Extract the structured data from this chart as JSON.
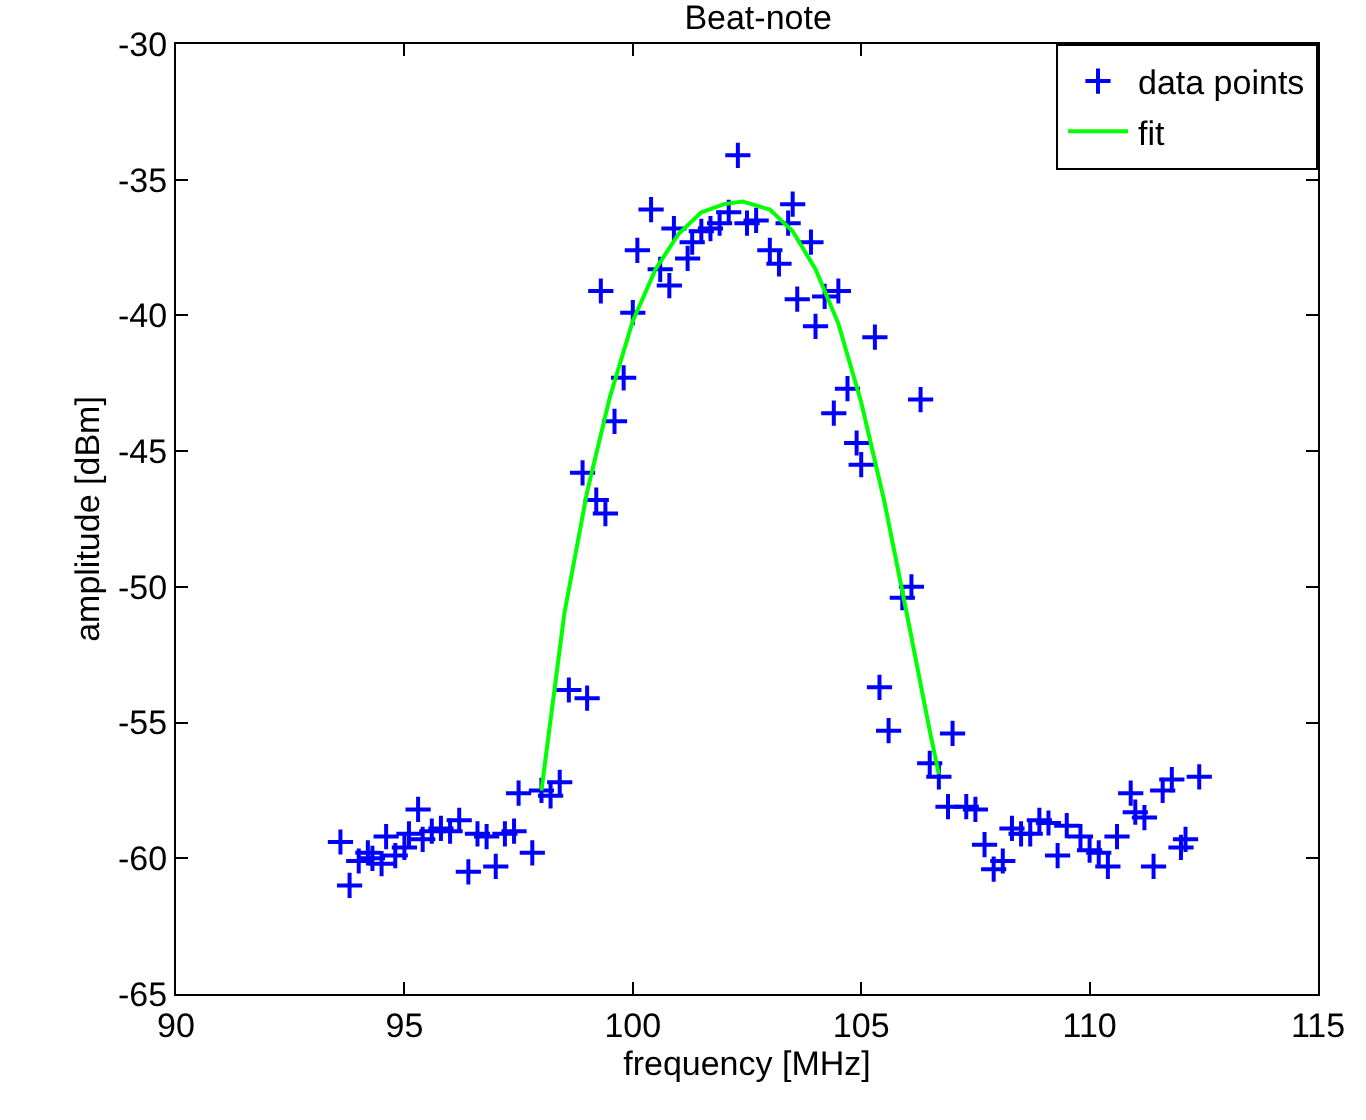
{
  "chart_data": {
    "type": "scatter",
    "title": "Beat-note",
    "xlabel": "frequency [MHz]",
    "ylabel": "amplitude [dBm]",
    "xlim": [
      90,
      115
    ],
    "xticks": [
      90,
      95,
      100,
      105,
      110,
      115
    ],
    "ylim": [
      -65,
      -30
    ],
    "yticks": [
      -65,
      -60,
      -55,
      -50,
      -45,
      -40,
      -35,
      -30
    ],
    "grid": false,
    "legend": "top right",
    "marker": "cross",
    "series": [
      {
        "name": "data points",
        "color": "#0000ff",
        "x": [
          93.6,
          93.8,
          94.0,
          94.2,
          94.3,
          94.5,
          94.6,
          94.8,
          95.0,
          95.1,
          95.3,
          95.4,
          95.6,
          95.8,
          96.0,
          96.2,
          96.4,
          96.6,
          96.8,
          97.0,
          97.2,
          97.4,
          97.5,
          97.8,
          98.0,
          98.2,
          98.4,
          98.6,
          99.0,
          98.9,
          99.2,
          99.4,
          99.6,
          99.8,
          99.3,
          100.0,
          100.1,
          100.4,
          100.6,
          100.8,
          100.9,
          101.2,
          101.3,
          101.5,
          101.7,
          101.9,
          102.1,
          102.3,
          102.5,
          102.7,
          103.0,
          103.2,
          103.5,
          103.4,
          103.6,
          103.9,
          104.0,
          104.2,
          104.5,
          104.4,
          104.7,
          105.0,
          104.9,
          105.3,
          105.4,
          105.6,
          105.9,
          106.1,
          106.3,
          106.5,
          106.7,
          107.0,
          106.9,
          107.3,
          107.5,
          107.7,
          107.9,
          108.1,
          108.3,
          108.5,
          108.7,
          108.9,
          109.1,
          109.3,
          109.5,
          109.8,
          110.0,
          110.2,
          110.4,
          110.6,
          110.9,
          111.0,
          111.2,
          111.4,
          111.6,
          111.8,
          112.0,
          112.1,
          112.4
        ],
        "values": [
          -59.4,
          -61,
          -60.1,
          -59.8,
          -60,
          -60.2,
          -59.2,
          -59.9,
          -59.6,
          -59.1,
          -58.2,
          -59.3,
          -59,
          -58.9,
          -59,
          -58.6,
          -60.5,
          -59.1,
          -59.2,
          -60.3,
          -59.1,
          -59,
          -57.6,
          -59.8,
          -57.5,
          -57.7,
          -57.2,
          -53.8,
          -54.1,
          -45.8,
          -46.8,
          -47.3,
          -43.9,
          -42.3,
          -39.1,
          -39.9,
          -37.6,
          -36.1,
          -38.3,
          -38.9,
          -36.8,
          -37.9,
          -37.3,
          -36.9,
          -36.8,
          -36.6,
          -36.2,
          -34.1,
          -36.6,
          -36.5,
          -37.6,
          -38.1,
          -35.9,
          -36.6,
          -39.4,
          -37.3,
          -40.4,
          -39.3,
          -39.1,
          -43.6,
          -42.7,
          -45.5,
          -44.7,
          -40.8,
          -53.7,
          -55.3,
          -50.4,
          -50,
          -43.1,
          -56.5,
          -57,
          -55.4,
          -58.1,
          -58.1,
          -58.2,
          -59.5,
          -60.4,
          -60.1,
          -58.9,
          -59.1,
          -59.1,
          -58.6,
          -58.7,
          -59.9,
          -58.8,
          -59.2,
          -59.7,
          -59.8,
          -60.3,
          -59.2,
          -57.6,
          -58.3,
          -58.5,
          -60.3,
          -57.5,
          -57.1,
          -59.6,
          -59.3,
          -57
        ]
      },
      {
        "name": "fit",
        "type": "line",
        "color": "#00ff00",
        "line_style": "solid",
        "marker": "none",
        "x": [
          98.0,
          98.5,
          99.0,
          99.5,
          100.0,
          100.5,
          101.0,
          101.5,
          102.0,
          102.4,
          103.0,
          103.5,
          104.0,
          104.5,
          105.0,
          105.5,
          106.0,
          106.5,
          106.7
        ],
        "values": [
          -57.5,
          -51,
          -46.5,
          -43,
          -40.2,
          -38.3,
          -37,
          -36.2,
          -35.9,
          -35.8,
          -36.1,
          -36.9,
          -38.3,
          -40.3,
          -43.2,
          -46.8,
          -51,
          -55.3,
          -56.9
        ]
      }
    ]
  }
}
